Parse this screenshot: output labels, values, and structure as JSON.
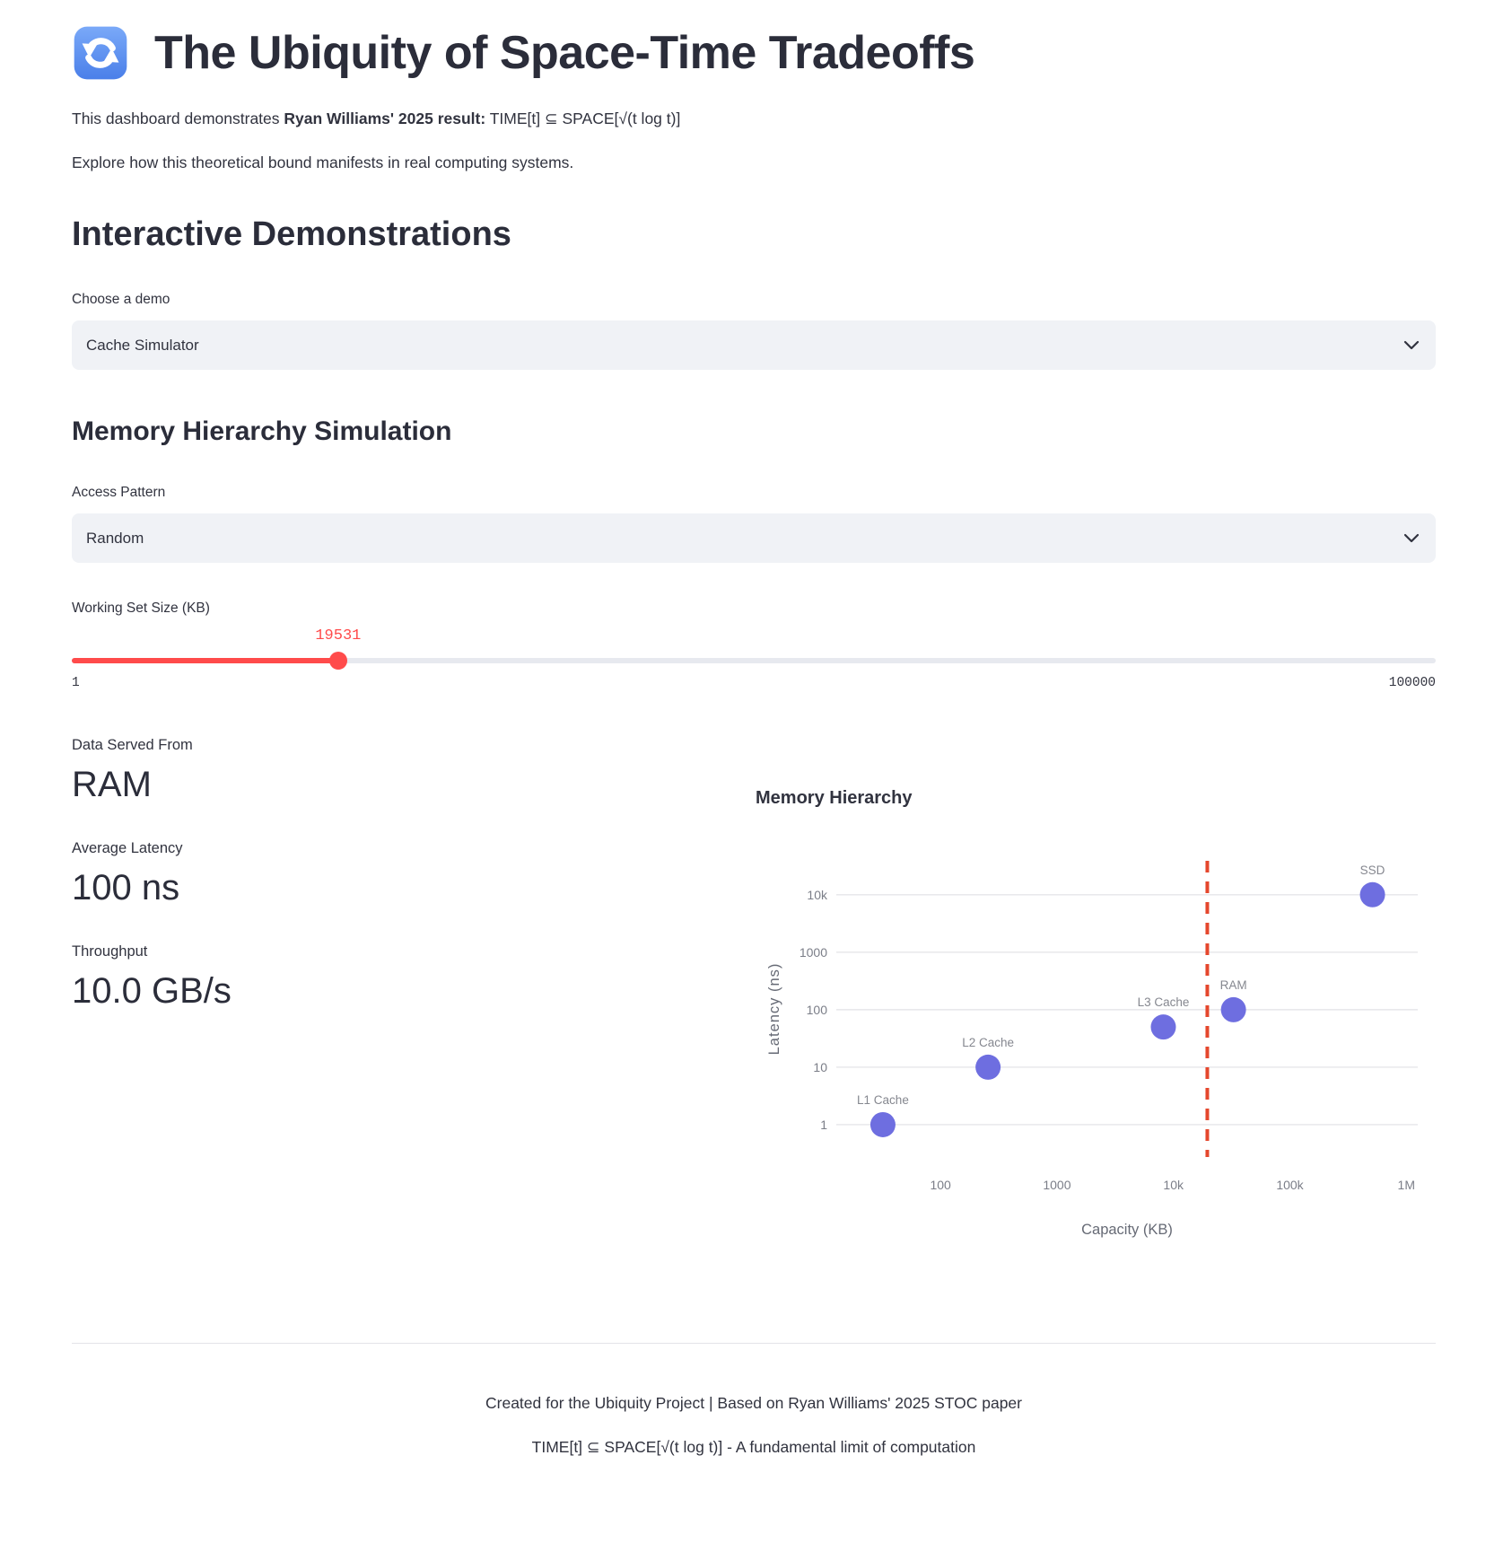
{
  "header": {
    "icon": "counterclockwise-arrows",
    "title": "The Ubiquity of Space-Time Tradeoffs"
  },
  "intro": {
    "line1_normal": "This dashboard demonstrates ",
    "line1_bold": "Ryan Williams' 2025 result:",
    "line1_rest": " TIME[t] ⊆ SPACE[√(t log t)]",
    "line2": "Explore how this theoretical bound manifests in real computing systems."
  },
  "demos": {
    "heading": "Interactive Demonstrations",
    "choose_label": "Choose a demo",
    "selected_demo": "Cache Simulator"
  },
  "simulation": {
    "heading": "Memory Hierarchy Simulation",
    "access_pattern_label": "Access Pattern",
    "access_pattern_value": "Random",
    "slider": {
      "label": "Working Set Size (KB)",
      "value": 19531,
      "min": 1,
      "max": 100000
    },
    "metrics": [
      {
        "label": "Data Served From",
        "value": "RAM"
      },
      {
        "label": "Average Latency",
        "value": "100 ns"
      },
      {
        "label": "Throughput",
        "value": "10.0 GB/s"
      }
    ]
  },
  "chart_data": {
    "type": "scatter",
    "title": "Memory Hierarchy",
    "xlabel": "Capacity (KB)",
    "ylabel": "Latency (ns)",
    "x_scale": "log",
    "y_scale": "log",
    "grid": "horizontal-only",
    "legend": "none",
    "points": [
      {
        "name": "L1 Cache",
        "capacity_kb": 32,
        "latency_ns": 1
      },
      {
        "name": "L2 Cache",
        "capacity_kb": 256,
        "latency_ns": 10
      },
      {
        "name": "L3 Cache",
        "capacity_kb": 8192,
        "latency_ns": 50
      },
      {
        "name": "RAM",
        "capacity_kb": 32768,
        "latency_ns": 100
      },
      {
        "name": "SSD",
        "capacity_kb": 512000,
        "latency_ns": 10000
      }
    ],
    "vline": {
      "value": 19531,
      "meaning": "working set size",
      "style": "dashed"
    },
    "x_axis": {
      "ticks": [
        100,
        1000,
        10000,
        100000,
        1000000
      ],
      "tick_labels": [
        "100",
        "1000",
        "10k",
        "100k",
        "1M"
      ],
      "log_min": 1.105,
      "log_max": 6.098
    },
    "y_axis": {
      "ticks": [
        1,
        10,
        100,
        1000,
        10000
      ],
      "tick_labels": [
        "1",
        "10",
        "100",
        "1000",
        "10k"
      ],
      "log_min": -0.5625,
      "log_max": 4.59
    }
  },
  "footer": {
    "line1": "Created for the Ubiquity Project | Based on Ryan Williams' 2025 STOC paper",
    "line2": "TIME[t] ⊆ SPACE[√(t log t)] - A fundamental limit of computation"
  },
  "colors": {
    "accent_red": "#ff4b4b",
    "point_fill": "#6e6ee0",
    "vline_red": "#e5472d",
    "grid": "#e6e6ea",
    "tick_text": "#7b7e88",
    "axis_title_text": "#666a75",
    "point_label_text": "#85878f",
    "chart_title_text": "#31333f",
    "select_bg": "#f0f2f6"
  }
}
